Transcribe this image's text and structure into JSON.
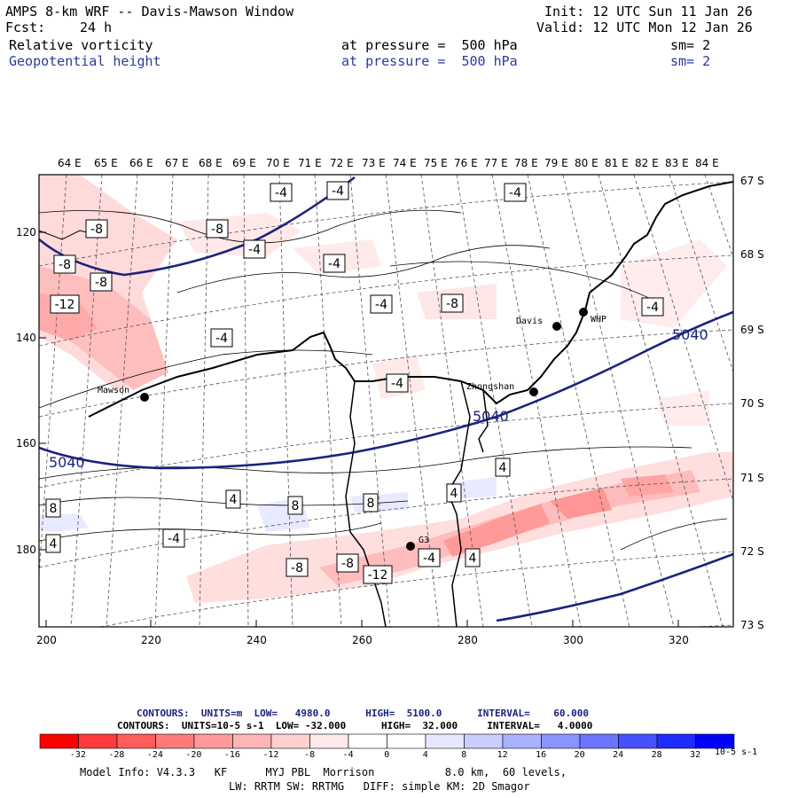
{
  "header": {
    "title": "AMPS 8-km WRF -- Davis-Mawson Window",
    "fcst_label": "Fcst:",
    "fcst_value": "24 h",
    "init": "Init: 12 UTC Sun 11 Jan 26",
    "valid": "Valid: 12 UTC Mon 12 Jan 26",
    "field1": {
      "name": "Relative vorticity",
      "pressure": "at pressure =  500 hPa",
      "sm": "sm= 2"
    },
    "field2": {
      "name": "Geopotential height",
      "pressure": "at pressure =  500 hPa",
      "sm": "sm= 2"
    }
  },
  "map": {
    "top_lon_labels": [
      "64 E",
      "65 E",
      "66 E",
      "67 E",
      "68 E",
      "69 E",
      "70 E",
      "71 E",
      "72 E",
      "73 E",
      "74 E",
      "75 E",
      "76 E",
      "77 E",
      "78 E",
      "79 E",
      "80 E",
      "81 E",
      "82 E",
      "83 E",
      "84 E"
    ],
    "right_lat_labels": [
      "67 S",
      "68 S",
      "69 S",
      "70 S",
      "71 S",
      "72 S",
      "73 S"
    ],
    "left_grid_labels": [
      "120",
      "140",
      "160",
      "180"
    ],
    "bottom_grid_labels": [
      "200",
      "220",
      "240",
      "260",
      "280",
      "300",
      "320"
    ],
    "stations": [
      {
        "name": "Mawson"
      },
      {
        "name": "Davis"
      },
      {
        "name": "WHP"
      },
      {
        "name": "Zhongshan"
      },
      {
        "name": "G3"
      }
    ],
    "height_labels": [
      "5040",
      "5040",
      "5040"
    ],
    "vort_labels": [
      "-4",
      "-4",
      "-4",
      "-8",
      "-8",
      "-4",
      "-8",
      "-8",
      "-4",
      "-12",
      "-4",
      "-8",
      "-4",
      "-4",
      "-4",
      "4",
      "8",
      "4",
      "8",
      "8",
      "4",
      "4",
      "-4",
      "-8",
      "-8",
      "-12",
      "-4",
      "4"
    ]
  },
  "contours_info": {
    "line1": "CONTOURS:  UNITS=m  LOW=   4980.0      HIGH=  5100.0      INTERVAL=    60.000",
    "line2": "CONTOURS:  UNITS=10-5 s-1  LOW= -32.000      HIGH=  32.000     INTERVAL=   4.0000"
  },
  "colorbar": {
    "colors": [
      "#ff0000",
      "#ff3b3b",
      "#ff5c5c",
      "#ff7a7a",
      "#ff9999",
      "#ffb5b5",
      "#ffd0d0",
      "#ffeaea",
      "#ffffff",
      "#ffffff",
      "#e6e8ff",
      "#c9cdff",
      "#aab1ff",
      "#8a93ff",
      "#6a74ff",
      "#4550ff",
      "#1f2bff",
      "#0000ff"
    ],
    "tick_labels": [
      "-32",
      "-28",
      "-24",
      "-20",
      "-16",
      "-12",
      "-8",
      "-4",
      "0",
      "4",
      "8",
      "12",
      "16",
      "20",
      "24",
      "28",
      "32"
    ],
    "units": "10-5 s-1"
  },
  "footer": {
    "line1": "Model Info: V4.3.3   KF      MYJ PBL  Morrison           8.0 km,  60 levels,",
    "line2": "LW: RRTM SW: RRTMG   DIFF: simple KM: 2D Smagor"
  }
}
